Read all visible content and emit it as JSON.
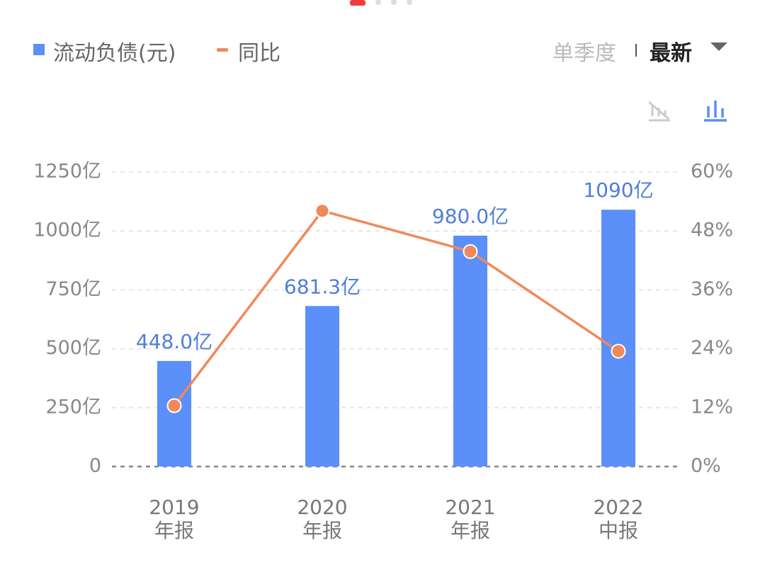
{
  "chart_data": {
    "type": "bar",
    "categories": [
      "2019\n年报",
      "2020\n年报",
      "2021\n年报",
      "2022\n中报"
    ],
    "series": [
      {
        "name": "流动负债(元)",
        "type": "bar",
        "color": "#5b8ff9",
        "values": [
          448.0,
          681.3,
          980.0,
          1090
        ],
        "value_labels": [
          "448.0亿",
          "681.3亿",
          "980.0亿",
          "1090亿"
        ]
      },
      {
        "name": "同比",
        "type": "line",
        "axis": "y2",
        "color": "#f0895a",
        "values": [
          12.4,
          52.1,
          43.8,
          23.5
        ]
      }
    ],
    "ylim": [
      0,
      1250
    ],
    "yticks": [
      {
        "value": 0,
        "label": "0"
      },
      {
        "value": 250,
        "label": "250亿"
      },
      {
        "value": 500,
        "label": "500亿"
      },
      {
        "value": 750,
        "label": "750亿"
      },
      {
        "value": 1000,
        "label": "1000亿"
      },
      {
        "value": 1250,
        "label": "1250亿"
      }
    ],
    "y2lim": [
      0,
      60
    ],
    "y2ticks": [
      {
        "value": 0,
        "label": "0%"
      },
      {
        "value": 12,
        "label": "12%"
      },
      {
        "value": 24,
        "label": "24%"
      },
      {
        "value": 36,
        "label": "36%"
      },
      {
        "value": 48,
        "label": "48%"
      },
      {
        "value": 60,
        "label": "60%"
      }
    ],
    "grid": true,
    "period_options": [
      "单季度",
      "最新"
    ]
  }
}
